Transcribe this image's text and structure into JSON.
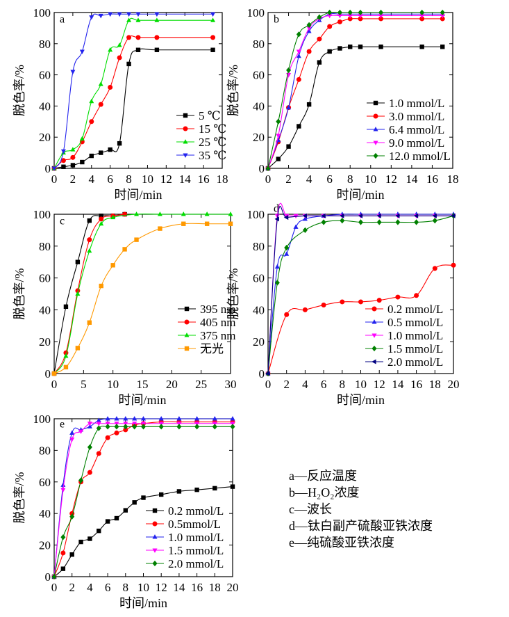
{
  "figure_captions": [
    {
      "key": "a",
      "text": "a—反应温度"
    },
    {
      "key": "b",
      "text": "b—H₂O₂浓度"
    },
    {
      "key": "c",
      "text": "c—波长"
    },
    {
      "key": "d",
      "text": "d—钛白副产硫酸亚铁浓度"
    },
    {
      "key": "e",
      "text": "e—纯硫酸亚铁浓度"
    }
  ],
  "chart_data": [
    {
      "panel": "a",
      "type": "line",
      "xlabel": "时间/min",
      "ylabel": "脱色率/%",
      "xlim": [
        0,
        18
      ],
      "ylim": [
        0,
        100
      ],
      "xticks": [
        0,
        2,
        4,
        6,
        8,
        10,
        12,
        14,
        16,
        18
      ],
      "yticks": [
        0,
        20,
        40,
        60,
        80,
        100
      ],
      "legend_position": "bottom-right",
      "series": [
        {
          "name": "5 ℃",
          "color": "#000000",
          "marker": "square",
          "x": [
            0,
            1,
            2,
            3,
            4,
            5,
            6,
            7,
            8,
            9,
            11,
            17
          ],
          "y": [
            0,
            1,
            2,
            4,
            8,
            10,
            12,
            16,
            67,
            76,
            76,
            76
          ]
        },
        {
          "name": "15 ℃",
          "color": "#ff0000",
          "marker": "circle",
          "x": [
            0,
            1,
            2,
            3,
            4,
            5,
            6,
            7,
            8,
            9,
            11,
            17
          ],
          "y": [
            0,
            5,
            7,
            17,
            30,
            41,
            52,
            71,
            84,
            84,
            84,
            84
          ]
        },
        {
          "name": "25 ℃",
          "color": "#00dd00",
          "marker": "triangle-up",
          "x": [
            0,
            1,
            2,
            3,
            4,
            5,
            6,
            7,
            8,
            9,
            11,
            17
          ],
          "y": [
            0,
            10,
            12,
            19,
            43,
            54,
            76,
            79,
            95,
            95,
            95,
            95
          ]
        },
        {
          "name": "35 ℃",
          "color": "#2222ee",
          "marker": "triangle-down",
          "x": [
            0,
            1,
            2,
            3,
            4,
            5,
            6,
            7,
            8,
            9,
            11,
            17
          ],
          "y": [
            0,
            11,
            62,
            75,
            97,
            98,
            99,
            99,
            99,
            99,
            99,
            99
          ]
        }
      ]
    },
    {
      "panel": "b",
      "type": "line",
      "xlabel": "时间/min",
      "ylabel": "脱色率/%",
      "xlim": [
        0,
        18
      ],
      "ylim": [
        0,
        100
      ],
      "xticks": [
        0,
        2,
        4,
        6,
        8,
        10,
        12,
        14,
        16,
        18
      ],
      "yticks": [
        0,
        20,
        40,
        60,
        80,
        100
      ],
      "legend_position": "bottom-right",
      "series": [
        {
          "name": "1.0 mmol/L",
          "color": "#000000",
          "marker": "square",
          "x": [
            0,
            1,
            2,
            3,
            4,
            5,
            6,
            7,
            8,
            9,
            11,
            15,
            17
          ],
          "y": [
            0,
            6,
            14,
            27,
            41,
            68,
            75,
            77,
            78,
            78,
            78,
            78,
            78
          ]
        },
        {
          "name": "3.0 mmol/L",
          "color": "#ff0000",
          "marker": "circle",
          "x": [
            0,
            1,
            2,
            3,
            4,
            5,
            6,
            7,
            8,
            9,
            11,
            15,
            17
          ],
          "y": [
            0,
            17,
            39,
            57,
            75,
            83,
            91,
            94,
            96,
            96,
            96,
            96,
            96
          ]
        },
        {
          "name": "6.4 mmol/L",
          "color": "#2222ee",
          "marker": "triangle-up",
          "x": [
            0,
            1,
            2,
            3,
            4,
            5,
            6,
            7,
            8,
            9,
            11,
            15,
            17
          ],
          "y": [
            0,
            18,
            39,
            72,
            88,
            95,
            99,
            99,
            99,
            99,
            99,
            99,
            99
          ]
        },
        {
          "name": "9.0 mmol/L",
          "color": "#ff00ff",
          "marker": "triangle-down",
          "x": [
            0,
            1,
            2,
            3,
            4,
            5,
            6,
            7,
            8,
            9,
            11,
            15,
            17
          ],
          "y": [
            0,
            21,
            60,
            75,
            90,
            96,
            98,
            98,
            98,
            98,
            98,
            98,
            98
          ]
        },
        {
          "name": "12.0 mmol/L",
          "color": "#008000",
          "marker": "diamond",
          "x": [
            0,
            1,
            2,
            3,
            4,
            5,
            6,
            7,
            8,
            9,
            11,
            15,
            17
          ],
          "y": [
            0,
            30,
            63,
            86,
            92,
            97,
            100,
            100,
            100,
            100,
            100,
            100,
            100
          ]
        }
      ]
    },
    {
      "panel": "c",
      "type": "line",
      "xlabel": "时间/min",
      "ylabel": "脱色率/%",
      "xlim": [
        0,
        30
      ],
      "ylim": [
        0,
        100
      ],
      "xticks": [
        0,
        5,
        10,
        15,
        20,
        25,
        30
      ],
      "yticks": [
        0,
        20,
        40,
        60,
        80,
        100
      ],
      "legend_position": "bottom-right",
      "series": [
        {
          "name": "395 nm",
          "color": "#000000",
          "marker": "square",
          "x": [
            0,
            2,
            4,
            6,
            8,
            10,
            12
          ],
          "y": [
            0,
            42,
            70,
            96,
            99,
            99,
            100
          ]
        },
        {
          "name": "405 nm",
          "color": "#ff0000",
          "marker": "circle",
          "x": [
            0,
            2,
            4,
            6,
            8,
            10,
            12
          ],
          "y": [
            0,
            13,
            52,
            84,
            97,
            99,
            100
          ]
        },
        {
          "name": "375 nm",
          "color": "#00dd00",
          "marker": "triangle-up",
          "x": [
            0,
            2,
            4,
            6,
            8,
            10,
            14,
            18,
            22,
            26,
            30
          ],
          "y": [
            0,
            11,
            50,
            77,
            94,
            98,
            100,
            100,
            100,
            100,
            100
          ]
        },
        {
          "name": "无光",
          "color": "#ff9900",
          "marker": "square",
          "x": [
            0,
            2,
            4,
            6,
            8,
            10,
            12,
            14,
            18,
            22,
            26,
            30
          ],
          "y": [
            0,
            4,
            16,
            32,
            55,
            68,
            78,
            84,
            91,
            94,
            94,
            94
          ]
        }
      ]
    },
    {
      "panel": "d",
      "type": "line",
      "xlabel": "时间/min",
      "ylabel": "脱色率/%",
      "xlim": [
        0,
        20
      ],
      "ylim": [
        0,
        100
      ],
      "xticks": [
        0,
        2,
        4,
        6,
        8,
        10,
        12,
        14,
        16,
        18,
        20
      ],
      "yticks": [
        0,
        20,
        40,
        60,
        80,
        100
      ],
      "legend_position": "bottom-right",
      "series": [
        {
          "name": "0.2 mmol/L",
          "color": "#ff0000",
          "marker": "circle",
          "x": [
            0,
            2,
            4,
            6,
            8,
            10,
            12,
            14,
            16,
            18,
            20
          ],
          "y": [
            0,
            37,
            40,
            43,
            45,
            45,
            46,
            48,
            49,
            66,
            68
          ]
        },
        {
          "name": "0.5 mmol/L",
          "color": "#2222ee",
          "marker": "triangle-up",
          "x": [
            0,
            1,
            2,
            3,
            4,
            6,
            8,
            10,
            12,
            14,
            16,
            18,
            20
          ],
          "y": [
            0,
            67,
            75,
            92,
            97,
            99,
            100,
            100,
            100,
            100,
            100,
            100,
            100
          ]
        },
        {
          "name": "1.0 mmol/L",
          "color": "#ff00ff",
          "marker": "triangle-down",
          "x": [
            0,
            1,
            2,
            3,
            4,
            6,
            8,
            10,
            12,
            14,
            16,
            18,
            20
          ],
          "y": [
            0,
            99,
            99,
            99,
            99,
            99,
            99,
            99,
            99,
            99,
            99,
            99,
            99
          ]
        },
        {
          "name": "1.5 mmol/L",
          "color": "#008000",
          "marker": "diamond",
          "x": [
            0,
            1,
            2,
            4,
            6,
            8,
            10,
            12,
            14,
            16,
            18,
            20
          ],
          "y": [
            0,
            57,
            79,
            90,
            95,
            96,
            95,
            95,
            95,
            95,
            96,
            99
          ]
        },
        {
          "name": "2.0 mmol/L",
          "color": "#000080",
          "marker": "triangle-left",
          "x": [
            0,
            1,
            2,
            4,
            6,
            8,
            10,
            12,
            14,
            16,
            18,
            20
          ],
          "y": [
            0,
            97,
            98,
            99,
            99,
            99,
            99,
            99,
            99,
            99,
            99,
            99
          ]
        }
      ]
    },
    {
      "panel": "e",
      "type": "line",
      "xlabel": "时间/min",
      "ylabel": "脱色率/%",
      "xlim": [
        0,
        20
      ],
      "ylim": [
        0,
        100
      ],
      "xticks": [
        0,
        2,
        4,
        6,
        8,
        10,
        12,
        14,
        16,
        18,
        20
      ],
      "yticks": [
        0,
        20,
        40,
        60,
        80,
        100
      ],
      "legend_position": "bottom-right",
      "series": [
        {
          "name": "0.2 mmol/L",
          "color": "#000000",
          "marker": "square",
          "x": [
            0,
            1,
            2,
            3,
            4,
            5,
            6,
            7,
            8,
            9,
            10,
            12,
            14,
            16,
            18,
            20
          ],
          "y": [
            0,
            5,
            14,
            22,
            24,
            29,
            35,
            37,
            42,
            47,
            50,
            52,
            54,
            55,
            56,
            57
          ]
        },
        {
          "name": "0.5mmol/L",
          "color": "#ff0000",
          "marker": "circle",
          "x": [
            0,
            1,
            2,
            3,
            4,
            5,
            6,
            7,
            8,
            9,
            10,
            12,
            14,
            16,
            18,
            20
          ],
          "y": [
            0,
            15,
            40,
            60,
            66,
            78,
            88,
            91,
            93,
            96,
            97,
            98,
            98,
            98,
            98,
            98
          ]
        },
        {
          "name": "1.0 mmol/L",
          "color": "#2222ee",
          "marker": "triangle-up",
          "x": [
            0,
            1,
            2,
            3,
            4,
            5,
            6,
            7,
            8,
            9,
            10,
            12,
            14,
            16,
            18,
            20
          ],
          "y": [
            0,
            58,
            91,
            93,
            95,
            99,
            100,
            100,
            100,
            100,
            100,
            100,
            100,
            100,
            100,
            100
          ]
        },
        {
          "name": "1.5 mmol/L",
          "color": "#ff00ff",
          "marker": "triangle-down",
          "x": [
            0,
            1,
            2,
            3,
            4,
            5,
            6,
            7,
            8,
            9,
            10,
            12,
            14,
            16,
            18,
            20
          ],
          "y": [
            0,
            55,
            87,
            92,
            97,
            97,
            97,
            97,
            97,
            97,
            97,
            97,
            97,
            97,
            97,
            97
          ]
        },
        {
          "name": "2.0 mmol/L",
          "color": "#008000",
          "marker": "diamond",
          "x": [
            0,
            1,
            2,
            3,
            4,
            5,
            6,
            7,
            8,
            9,
            10,
            12,
            14,
            16,
            18,
            20
          ],
          "y": [
            0,
            25,
            38,
            61,
            82,
            94,
            95,
            95,
            95,
            95,
            95,
            95,
            95,
            95,
            95,
            95
          ]
        }
      ]
    }
  ]
}
